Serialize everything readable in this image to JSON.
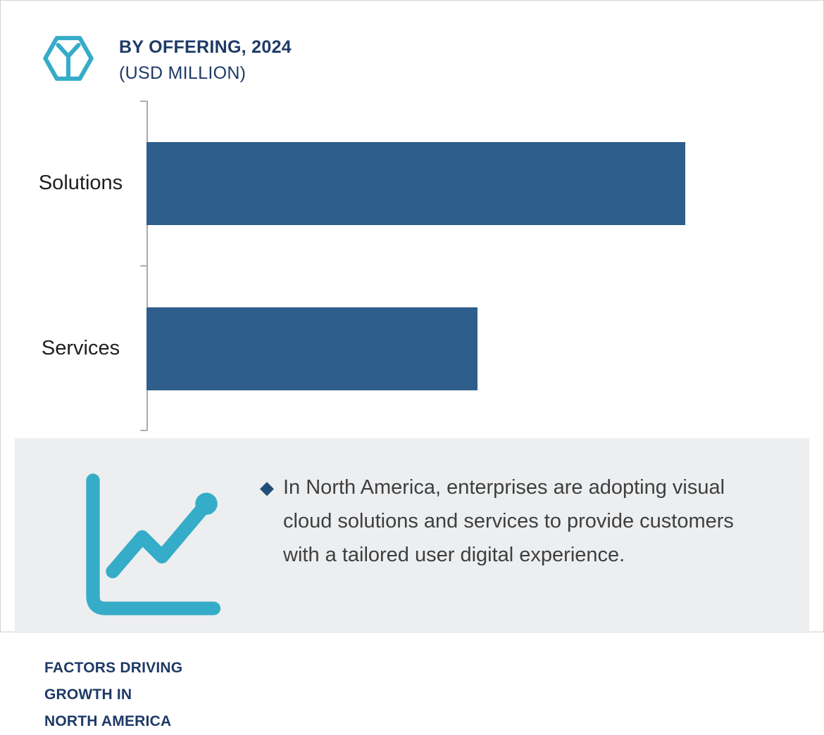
{
  "colors": {
    "bar": "#2F5E8C",
    "accent_teal": "#35ACC8",
    "navy": "#1E3A66",
    "panel_bg": "#ECEEF0",
    "body_text": "#3F3F3F",
    "axis": "#AAAAAA",
    "bullet": "#1F4E79"
  },
  "header": {
    "title_line1": "BY OFFERING, 2024",
    "title_line2": "(USD MILLION)"
  },
  "icons": {
    "logo": "hexagon-y-logo",
    "growth": "line-chart-icon",
    "diamond_bullet": "◆"
  },
  "chart_data": {
    "type": "bar",
    "orientation": "horizontal",
    "title": "BY OFFERING, 2024 (USD MILLION)",
    "categories": [
      "Solutions",
      "Services"
    ],
    "values": [
      100,
      61.4
    ],
    "value_note": "relative bar lengths estimated from pixels; numeric values are not labeled in the chart",
    "xlabel": "",
    "ylabel": "",
    "legend": false,
    "grid": false,
    "axis_ticks": 3
  },
  "footer": {
    "heading": "FACTORS DRIVING GROWTH IN NORTH AMERICA",
    "heading_lines": [
      "FACTORS DRIVING",
      "GROWTH IN",
      "NORTH AMERICA"
    ],
    "bullet_text": "In North America, enterprises are adopting visual cloud solutions and services to provide customers with a tailored user digital experience."
  }
}
